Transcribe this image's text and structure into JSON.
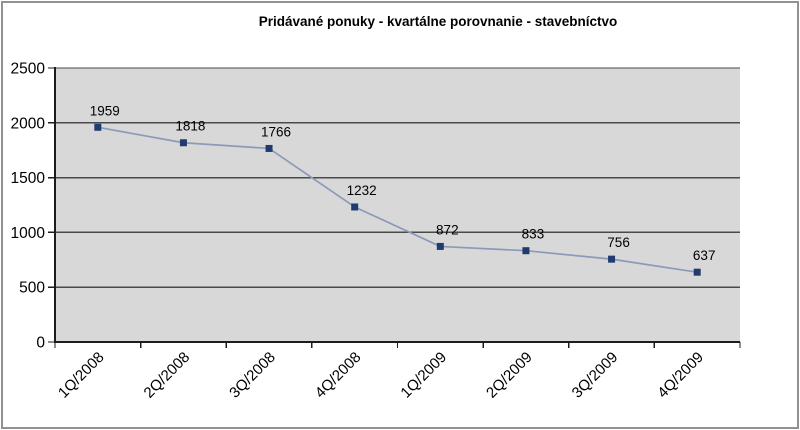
{
  "chart_data": {
    "type": "line",
    "title": "Pridávané ponuky - kvartálne porovnanie - stavebníctvo",
    "categories": [
      "1Q/2008",
      "2Q/2008",
      "3Q/2008",
      "4Q/2008",
      "1Q/2009",
      "2Q/2009",
      "3Q/2009",
      "4Q/2009"
    ],
    "values": [
      1959,
      1818,
      1766,
      1232,
      872,
      833,
      756,
      637
    ],
    "data_labels_visible": true,
    "xlabel": "",
    "ylabel": "",
    "ylim": [
      0,
      2500
    ],
    "yticks": [
      0,
      500,
      1000,
      1500,
      2000,
      2500
    ],
    "grid": true,
    "legend": false,
    "marker_shape": "square",
    "x_tick_label_rotation_deg": 45
  },
  "colors": {
    "page_background": "#ffffff",
    "plot_background": "#d8d8d8",
    "gridline": "#4a4a4a",
    "axis": "#1c1c1c",
    "tick": "#1c1c1c",
    "series_line": "#8b9ab8",
    "marker_fill": "#1f3b70",
    "data_label_text": "#000000",
    "axis_label_text": "#000000",
    "title_text": "#000000",
    "frame_border": "#919191"
  }
}
